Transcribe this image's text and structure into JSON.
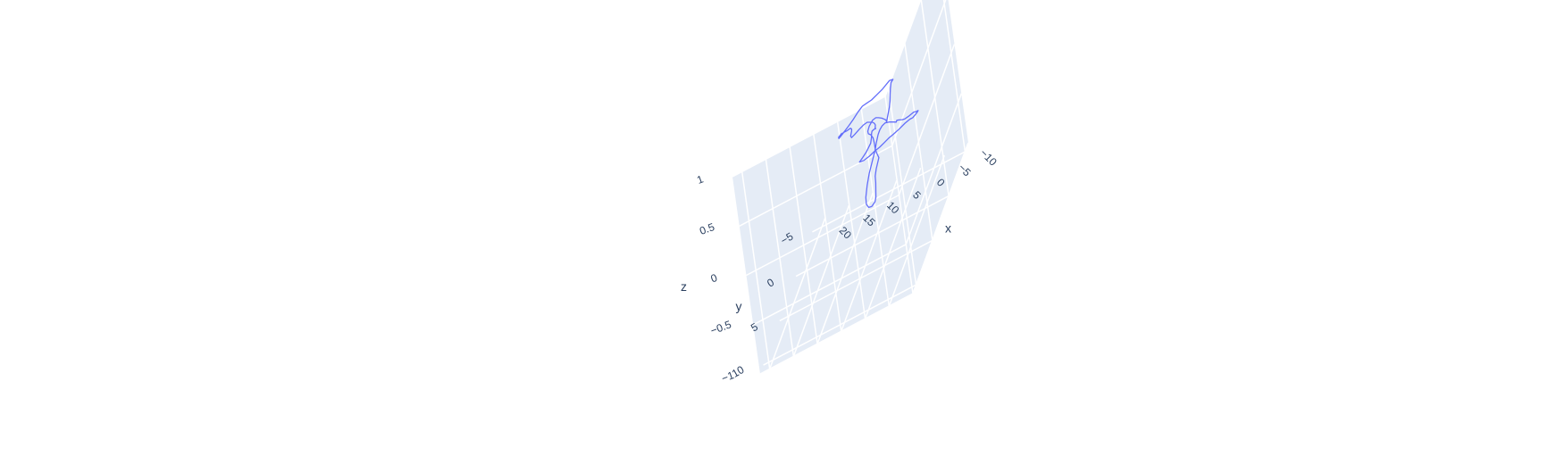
{
  "chart_data": {
    "type": "scatter3d",
    "mode": "lines",
    "title": "",
    "axes": {
      "x": {
        "title": "x",
        "range": [
          -10,
          22
        ],
        "ticks": [
          -10,
          -5,
          0,
          5,
          10,
          15,
          20
        ],
        "tick_labels": [
          "−10",
          "−5",
          "0",
          "5",
          "10",
          "15",
          "20"
        ]
      },
      "y": {
        "title": "y",
        "range": [
          -6,
          11
        ],
        "ticks": [
          -5,
          0,
          5,
          10
        ],
        "tick_labels": [
          "−5",
          "0",
          "5",
          "10"
        ]
      },
      "z": {
        "title": "z",
        "range": [
          -1,
          1
        ],
        "ticks": [
          -1,
          -0.5,
          0,
          0.5,
          1
        ],
        "tick_labels": [
          "−1",
          "−0.5",
          "0",
          "0.5",
          "1"
        ]
      }
    },
    "grid": true,
    "colors": {
      "line": "#636efa",
      "plane": "#e5ecf6",
      "grid": "#ffffff",
      "text": "#2a3f5f"
    },
    "series": [
      {
        "z_const": 0,
        "x": [
          0.2,
          0.5,
          0.9,
          1.3,
          1.9,
          2.4,
          2.8,
          2.6,
          3.4,
          4.4,
          5.4,
          6.2,
          7.2,
          8.0,
          8.6,
          9.1,
          9.6,
          10.1,
          10.6,
          11.0,
          11.2,
          10.8,
          10.2,
          9.6,
          9.0,
          8.6,
          8.4,
          8.2,
          7.8,
          7.3,
          6.6,
          5.9,
          5.2,
          4.5,
          3.8,
          3.2,
          2.8,
          2.6,
          2.4,
          2.8,
          3.1,
          3.0,
          2.6,
          2.3,
          2.6,
          3.0,
          3.4,
          2.4,
          1.4,
          0.6,
          -0.4,
          -1.2,
          -1.9,
          -2.7,
          -3.7,
          -4.7,
          -5.6,
          -6.2,
          -6.8,
          -6.9,
          -6.5,
          -5.9,
          -5.0,
          -4.2,
          -3.6,
          -2.8,
          -2.3,
          -2.3,
          -1.6,
          -0.6,
          0.5,
          1.0,
          1.2,
          1.2,
          0.9,
          0.5,
          0.2,
          -0.2,
          -0.8,
          -1.6,
          -2.4,
          -3.3,
          -4.0,
          -4.4,
          -4.2,
          -3.7,
          -2.8,
          -2.0,
          -1.6,
          -1.2,
          -0.2,
          0.6,
          1.3,
          2.2,
          3.1,
          3.8,
          4.2,
          4.3,
          4.0,
          3.4,
          2.7,
          1.8,
          0.9,
          0.5,
          0.2
        ],
        "y": [
          -0.1,
          -0.9,
          -2.0,
          -2.8,
          -3.7,
          -4.5,
          -5.3,
          -5.6,
          -5.7,
          -5.0,
          -4.6,
          -4.3,
          -4.2,
          -4.1,
          -3.6,
          -2.9,
          -2.4,
          -2.0,
          -1.6,
          -1.3,
          -1.5,
          -1.8,
          -1.8,
          -1.8,
          -1.9,
          -1.7,
          -1.4,
          -0.8,
          -0.5,
          -0.7,
          -1.1,
          -1.4,
          -1.5,
          -1.3,
          -1.1,
          -0.8,
          -0.5,
          -0.1,
          0.0,
          0.0,
          0.1,
          0.4,
          1.0,
          1.7,
          2.6,
          3.1,
          3.5,
          3.6,
          3.4,
          3.1,
          2.9,
          2.6,
          2.3,
          2.1,
          1.8,
          1.4,
          1.2,
          1.2,
          0.8,
          0.6,
          0.6,
          0.5,
          0.7,
          0.8,
          0.7,
          0.5,
          0.4,
          0.6,
          0.4,
          0.1,
          -0.1,
          0.1,
          0.5,
          1.0,
          2.0,
          3.0,
          4.2,
          5.8,
          7.3,
          8.9,
          9.9,
          10.5,
          10.6,
          10.2,
          9.6,
          8.9,
          7.6,
          6.6,
          5.7,
          4.3,
          3.5,
          2.8,
          2.0,
          1.1,
          0.5,
          0.2,
          -0.2,
          -0.8,
          -1.4,
          -1.5,
          -1.3,
          -1.0,
          -0.6,
          -0.4,
          -0.1
        ]
      }
    ]
  }
}
